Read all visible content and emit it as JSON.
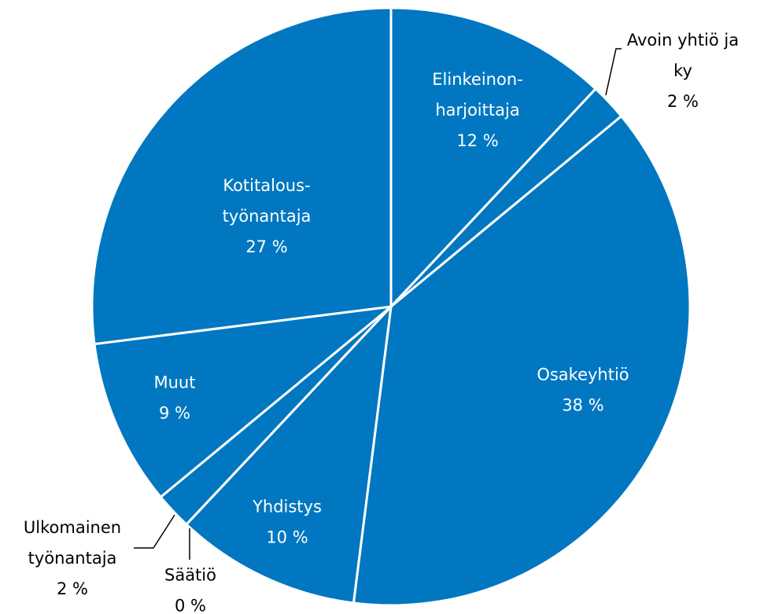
{
  "chart_data": {
    "type": "pie",
    "categories": [
      [
        "Elinkeinon-",
        "harjoittaja"
      ],
      [
        "Avoin yhtiö ja",
        "ky"
      ],
      [
        "Osakeyhtiö"
      ],
      [
        "Yhdistys"
      ],
      [
        "Säätiö"
      ],
      [
        "Ulkomainen",
        "työnantaja"
      ],
      [
        "Muut"
      ],
      [
        "Kotitalous-",
        "työnantaja"
      ]
    ],
    "values": [
      12,
      2,
      38,
      10,
      0,
      2,
      9,
      27
    ],
    "value_labels": [
      "12 %",
      "2 %",
      "38 %",
      "10 %",
      "0 %",
      "2 %",
      "9 %",
      "27 %"
    ],
    "color": "#0077c0"
  }
}
